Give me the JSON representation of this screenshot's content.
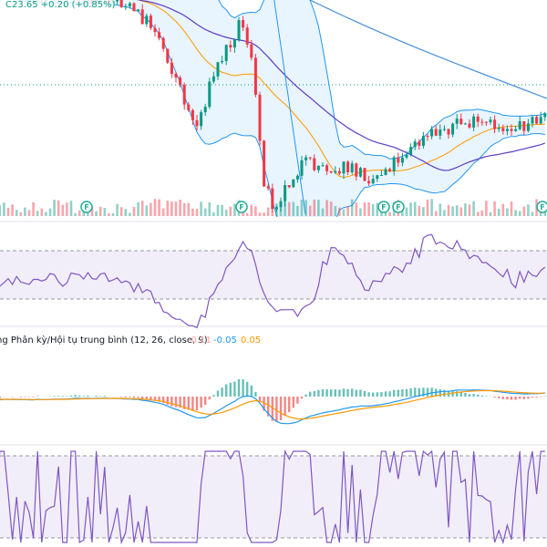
{
  "header": {
    "ohlc_change": "C23.65 +0.20 (+0.85%)"
  },
  "macd": {
    "label": "ng Phân kỳ/Hội tụ trung bình (12, 26, close, 9)",
    "values": [
      "-0.11",
      "-0.05",
      "0.05"
    ]
  },
  "markers": [
    "F",
    "F",
    "F",
    "F",
    "F"
  ]
}
